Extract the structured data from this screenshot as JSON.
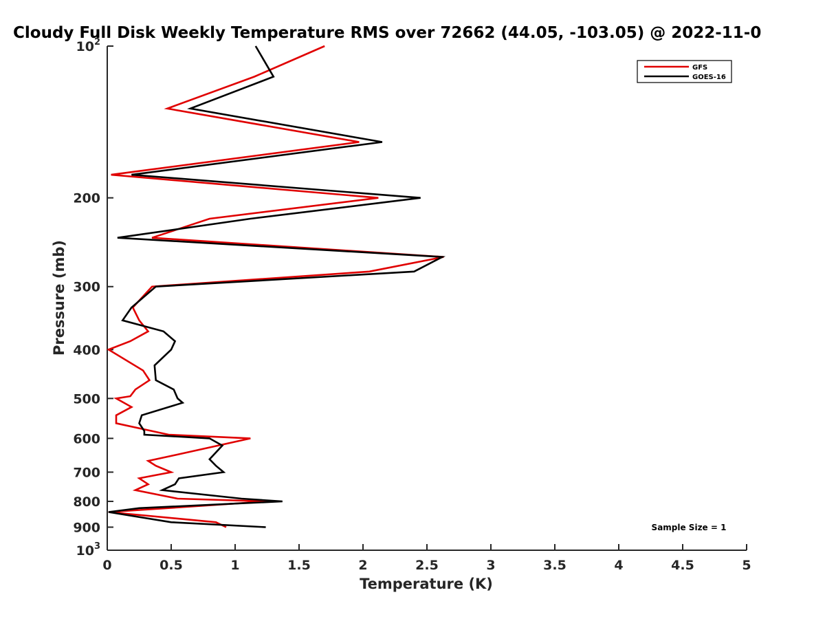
{
  "chart_data": {
    "type": "line",
    "title": "Cloudy Full Disk Weekly Temperature RMS over 72662 (44.05, -103.05) @ 2022-11-0",
    "xlabel": "Temperature (K)",
    "ylabel": "Pressure (mb)",
    "xlim": [
      0,
      5
    ],
    "ylim": [
      100,
      1000
    ],
    "yscale": "log",
    "y_reversed": true,
    "xticks": [
      0,
      0.5,
      1,
      1.5,
      2,
      2.5,
      3,
      3.5,
      4,
      4.5,
      5
    ],
    "xtick_labels": [
      "0",
      "0.5",
      "1",
      "1.5",
      "2",
      "2.5",
      "3",
      "3.5",
      "4",
      "4.5",
      "5"
    ],
    "yticks": [
      100,
      200,
      300,
      400,
      500,
      600,
      700,
      800,
      900,
      1000
    ],
    "ytick_labels": [
      {
        "base": "10",
        "exp": "2"
      },
      {
        "base": "200",
        "exp": ""
      },
      {
        "base": "300",
        "exp": ""
      },
      {
        "base": "400",
        "exp": ""
      },
      {
        "base": "500",
        "exp": ""
      },
      {
        "base": "600",
        "exp": ""
      },
      {
        "base": "700",
        "exp": ""
      },
      {
        "base": "800",
        "exp": ""
      },
      {
        "base": "900",
        "exp": ""
      },
      {
        "base": "10",
        "exp": "3"
      }
    ],
    "legend_position": "top-right",
    "grid": false,
    "series": [
      {
        "name": "GFS",
        "color": "#e00000",
        "points": [
          [
            1.7,
            100
          ],
          [
            1.15,
            115
          ],
          [
            0.47,
            133
          ],
          [
            1.97,
            155
          ],
          [
            0.03,
            180
          ],
          [
            2.12,
            200
          ],
          [
            0.8,
            220
          ],
          [
            0.35,
            240
          ],
          [
            2.63,
            262
          ],
          [
            2.05,
            280
          ],
          [
            0.35,
            300
          ],
          [
            0.2,
            330
          ],
          [
            0.25,
            350
          ],
          [
            0.32,
            368
          ],
          [
            0.18,
            385
          ],
          [
            0.01,
            400
          ],
          [
            0.28,
            440
          ],
          [
            0.33,
            460
          ],
          [
            0.22,
            480
          ],
          [
            0.18,
            495
          ],
          [
            0.07,
            500
          ],
          [
            0.19,
            520
          ],
          [
            0.07,
            540
          ],
          [
            0.07,
            560
          ],
          [
            0.48,
            590
          ],
          [
            1.12,
            600
          ],
          [
            0.5,
            650
          ],
          [
            0.32,
            665
          ],
          [
            0.38,
            680
          ],
          [
            0.5,
            700
          ],
          [
            0.25,
            720
          ],
          [
            0.32,
            740
          ],
          [
            0.22,
            760
          ],
          [
            0.55,
            790
          ],
          [
            1.25,
            800
          ],
          [
            0.47,
            825
          ],
          [
            0.01,
            840
          ],
          [
            0.85,
            880
          ],
          [
            0.93,
            900
          ]
        ]
      },
      {
        "name": "GOES-16",
        "color": "#000000",
        "points": [
          [
            1.16,
            100
          ],
          [
            1.3,
            115
          ],
          [
            0.65,
            133
          ],
          [
            2.15,
            155
          ],
          [
            0.19,
            180
          ],
          [
            2.45,
            200
          ],
          [
            1.12,
            220
          ],
          [
            0.08,
            240
          ],
          [
            2.62,
            262
          ],
          [
            2.4,
            280
          ],
          [
            0.38,
            300
          ],
          [
            0.19,
            330
          ],
          [
            0.12,
            350
          ],
          [
            0.44,
            368
          ],
          [
            0.53,
            385
          ],
          [
            0.5,
            400
          ],
          [
            0.37,
            430
          ],
          [
            0.38,
            460
          ],
          [
            0.52,
            480
          ],
          [
            0.55,
            500
          ],
          [
            0.59,
            510
          ],
          [
            0.27,
            540
          ],
          [
            0.25,
            560
          ],
          [
            0.29,
            580
          ],
          [
            0.29,
            590
          ],
          [
            0.8,
            600
          ],
          [
            0.9,
            620
          ],
          [
            0.8,
            660
          ],
          [
            0.85,
            680
          ],
          [
            0.91,
            700
          ],
          [
            0.56,
            720
          ],
          [
            0.53,
            740
          ],
          [
            0.43,
            760
          ],
          [
            1.05,
            790
          ],
          [
            1.37,
            800
          ],
          [
            0.25,
            825
          ],
          [
            0.01,
            840
          ],
          [
            0.5,
            880
          ],
          [
            1.24,
            900
          ]
        ]
      }
    ],
    "annotation": "Sample Size = 1"
  }
}
